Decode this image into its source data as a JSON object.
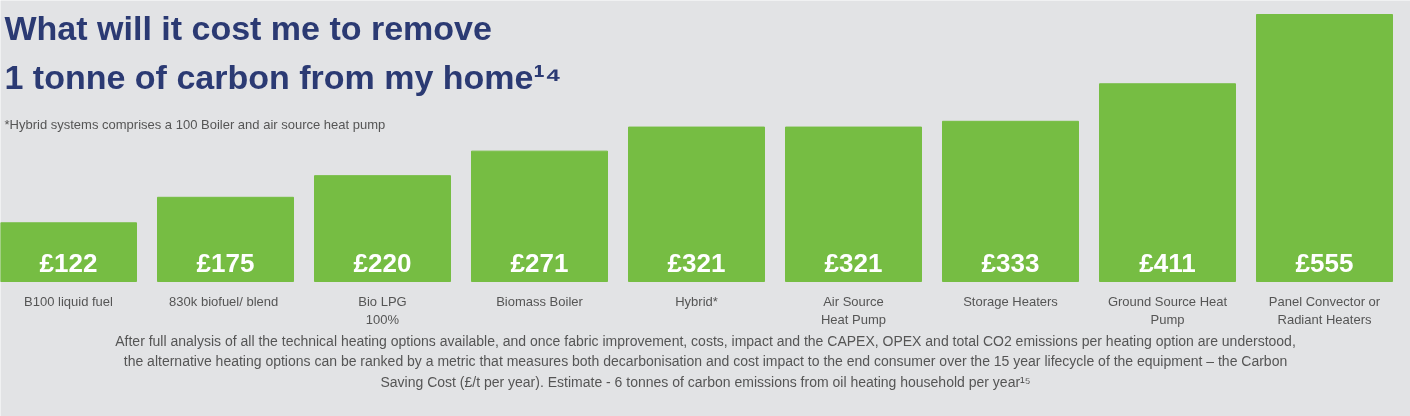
{
  "chart_data": {
    "type": "bar",
    "title": "What will it cost me to remove\n1 tonne of carbon from my home¹⁴",
    "subtitle": "*Hybrid systems comprises a 100 Boiler and air source heat pump",
    "categories": [
      "B100 liquid fuel",
      "830k biofuel/  blend",
      "Bio LPG\n100%",
      "Biomass Boiler",
      "Hybrid*",
      "Air Source\nHeat Pump",
      "Storage Heaters",
      "Ground Source Heat\nPump",
      "Panel Convector or\nRadiant Heaters"
    ],
    "values": [
      122,
      175,
      220,
      271,
      321,
      321,
      333,
      411,
      555
    ],
    "value_labels": [
      "£122",
      "£175",
      "£220",
      "£271",
      "£321",
      "£321",
      "£333",
      "£411",
      "£555"
    ],
    "color": "#76bd43",
    "annotations": [
      "After full analysis of all the technical heating options available, and once fabric improvement, costs, impact and the CAPEX, OPEX and total CO2 emissions per heating option are understood, the alternative heating options can be ranked by a metric that measures both decarbonisation and cost impact to the end consumer over the 15 year lifecycle of the equipment – the Carbon Saving Cost (£/t per year). Estimate - 6 tonnes of carbon emissions from oil heating household per year¹⁵"
    ]
  }
}
